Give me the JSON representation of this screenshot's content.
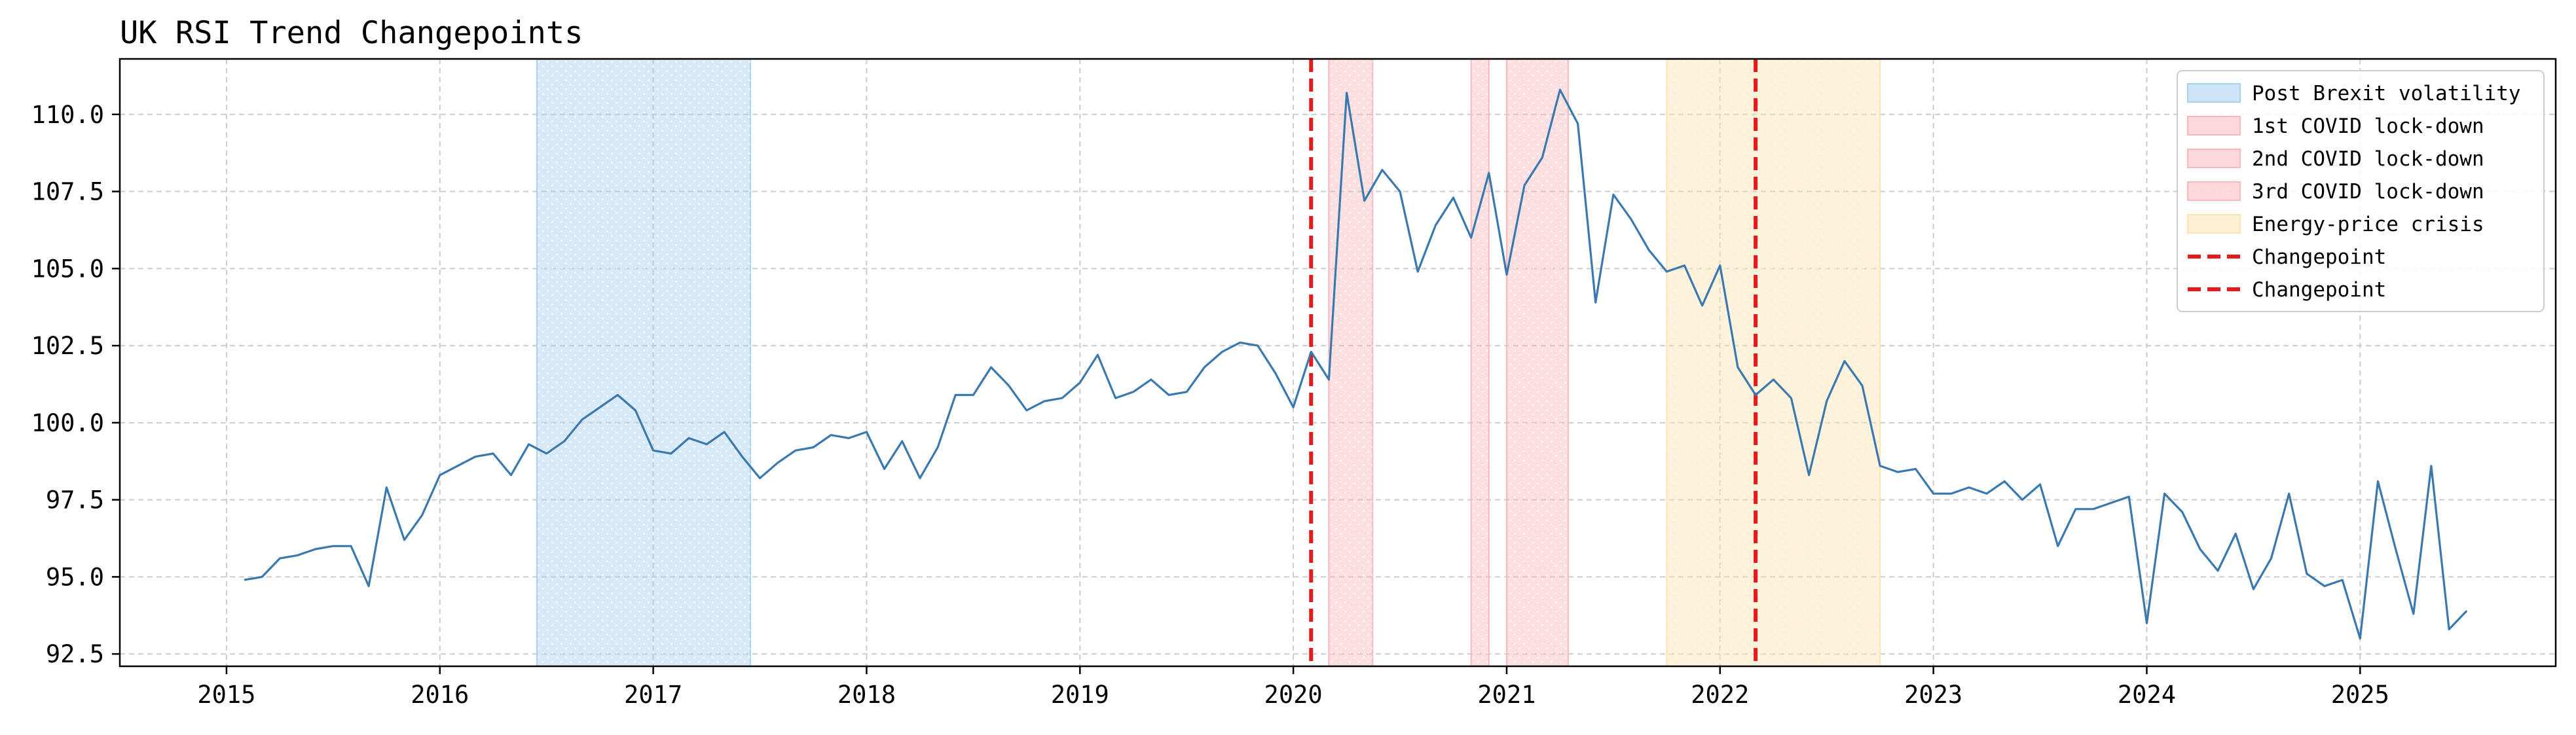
{
  "chart_data": {
    "type": "line",
    "title": "UK RSI Trend Changepoints",
    "xlabel": "",
    "ylabel": "",
    "xlim": [
      "2014-07-01",
      "2025-12-01"
    ],
    "ylim": [
      92.1,
      111.8
    ],
    "x_ticks": [
      {
        "value": "2015-01-01",
        "label": "2015"
      },
      {
        "value": "2016-01-01",
        "label": "2016"
      },
      {
        "value": "2017-01-01",
        "label": "2017"
      },
      {
        "value": "2018-01-01",
        "label": "2018"
      },
      {
        "value": "2019-01-01",
        "label": "2019"
      },
      {
        "value": "2020-01-01",
        "label": "2020"
      },
      {
        "value": "2021-01-01",
        "label": "2021"
      },
      {
        "value": "2022-01-01",
        "label": "2022"
      },
      {
        "value": "2023-01-01",
        "label": "2023"
      },
      {
        "value": "2024-01-01",
        "label": "2024"
      },
      {
        "value": "2025-01-01",
        "label": "2025"
      }
    ],
    "y_ticks": [
      {
        "value": 92.5,
        "label": "92.5"
      },
      {
        "value": 95.0,
        "label": "95.0"
      },
      {
        "value": 97.5,
        "label": "97.5"
      },
      {
        "value": 100.0,
        "label": "100.0"
      },
      {
        "value": 102.5,
        "label": "102.5"
      },
      {
        "value": 105.0,
        "label": "105.0"
      },
      {
        "value": 107.5,
        "label": "107.5"
      },
      {
        "value": 110.0,
        "label": "110.0"
      }
    ],
    "grid": true,
    "legend_position": "top-right",
    "series": [
      {
        "color": "#3a78b0",
        "x": [
          "2015-02",
          "2015-03",
          "2015-04",
          "2015-05",
          "2015-06",
          "2015-07",
          "2015-08",
          "2015-09",
          "2015-10",
          "2015-11",
          "2015-12",
          "2016-01",
          "2016-02",
          "2016-03",
          "2016-04",
          "2016-05",
          "2016-06",
          "2016-07",
          "2016-08",
          "2016-09",
          "2016-10",
          "2016-11",
          "2016-12",
          "2017-01",
          "2017-02",
          "2017-03",
          "2017-04",
          "2017-05",
          "2017-06",
          "2017-07",
          "2017-08",
          "2017-09",
          "2017-10",
          "2017-11",
          "2017-12",
          "2018-01",
          "2018-02",
          "2018-03",
          "2018-04",
          "2018-05",
          "2018-06",
          "2018-07",
          "2018-08",
          "2018-09",
          "2018-10",
          "2018-11",
          "2018-12",
          "2019-01",
          "2019-02",
          "2019-03",
          "2019-04",
          "2019-05",
          "2019-06",
          "2019-07",
          "2019-08",
          "2019-09",
          "2019-10",
          "2019-11",
          "2019-12",
          "2020-01",
          "2020-02",
          "2020-03",
          "2020-04",
          "2020-05",
          "2020-06",
          "2020-07",
          "2020-08",
          "2020-09",
          "2020-10",
          "2020-11",
          "2020-12",
          "2021-01",
          "2021-02",
          "2021-03",
          "2021-04",
          "2021-05",
          "2021-06",
          "2021-07",
          "2021-08",
          "2021-09",
          "2021-10",
          "2021-11",
          "2021-12",
          "2022-01",
          "2022-02",
          "2022-03",
          "2022-04",
          "2022-05",
          "2022-06",
          "2022-07",
          "2022-08",
          "2022-09",
          "2022-10",
          "2022-11",
          "2022-12",
          "2023-01",
          "2023-02",
          "2023-03",
          "2023-04",
          "2023-05",
          "2023-06",
          "2023-07",
          "2023-08",
          "2023-09",
          "2023-10",
          "2023-11",
          "2023-12",
          "2024-01",
          "2024-02",
          "2024-03",
          "2024-04",
          "2024-05",
          "2024-06",
          "2024-07",
          "2024-08",
          "2024-09",
          "2024-10",
          "2024-11",
          "2024-12",
          "2025-01",
          "2025-02",
          "2025-03",
          "2025-04",
          "2025-05",
          "2025-06",
          "2025-07"
        ],
        "y": [
          94.9,
          95.0,
          95.6,
          95.7,
          95.9,
          96.0,
          96.0,
          94.7,
          97.9,
          96.2,
          97.0,
          98.3,
          98.6,
          98.9,
          99.0,
          98.3,
          99.3,
          99.0,
          99.4,
          100.1,
          100.5,
          100.9,
          100.4,
          99.1,
          99.0,
          99.5,
          99.3,
          99.7,
          98.9,
          98.2,
          98.7,
          99.1,
          99.2,
          99.6,
          99.5,
          99.7,
          98.5,
          99.4,
          98.2,
          99.2,
          100.9,
          100.9,
          101.8,
          101.2,
          100.4,
          100.7,
          100.8,
          101.3,
          102.2,
          100.8,
          101.0,
          101.4,
          100.9,
          101.0,
          101.8,
          102.3,
          102.6,
          102.5,
          101.6,
          100.5,
          102.3,
          101.4,
          110.7,
          107.2,
          108.2,
          107.5,
          104.9,
          106.4,
          107.3,
          106.0,
          108.1,
          104.8,
          107.7,
          108.6,
          110.8,
          109.7,
          103.9,
          107.4,
          106.6,
          105.6,
          104.9,
          105.1,
          103.8,
          105.1,
          101.8,
          100.9,
          101.4,
          100.8,
          98.3,
          100.7,
          102.0,
          101.2,
          98.6,
          98.4,
          98.5,
          97.7,
          97.7,
          97.9,
          97.7,
          98.1,
          97.5,
          98.0,
          96.0,
          97.2,
          97.2,
          97.4,
          97.6,
          93.5,
          97.7,
          97.1,
          95.9,
          95.2,
          96.4,
          94.6,
          95.6,
          97.7,
          95.1,
          94.7,
          94.9,
          93.0,
          98.1,
          95.9,
          93.8,
          98.6,
          93.3,
          93.9
        ]
      }
    ],
    "shaded_regions": [
      {
        "label": "Post Brexit volatility",
        "start": "2016-06-15",
        "end": "2017-06-15",
        "color": "#a8d0f0"
      },
      {
        "label": "1st COVID lock-down",
        "start": "2020-03-01",
        "end": "2020-05-15",
        "color": "#f8b8bc"
      },
      {
        "label": "2nd COVID lock-down",
        "start": "2020-11-01",
        "end": "2020-12-01",
        "color": "#f8b8bc"
      },
      {
        "label": "3rd COVID lock-down",
        "start": "2021-01-01",
        "end": "2021-04-15",
        "color": "#f8b8bc"
      },
      {
        "label": "Energy-price crisis",
        "start": "2021-10-01",
        "end": "2022-10-01",
        "color": "#fde3b0"
      }
    ],
    "changepoints": [
      {
        "label": "Changepoint",
        "x": "2020-02-01",
        "color": "#e41a1c"
      },
      {
        "label": "Changepoint",
        "x": "2022-03-01",
        "color": "#e41a1c"
      }
    ]
  }
}
